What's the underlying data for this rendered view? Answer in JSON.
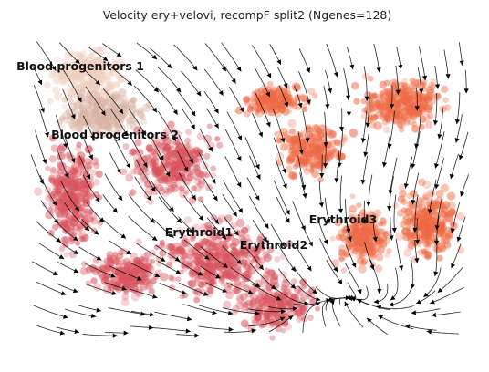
{
  "chart_data": {
    "type": "scatter",
    "subtype": "velocity-stream-embedding",
    "title": "Velocity ery+velovi, recompF split2 (Ngenes=128)",
    "xlabel": "",
    "ylabel": "",
    "axes_visible": false,
    "grid": false,
    "legend": "none",
    "color_scheme": {
      "progenitor_early": "#efcfbf",
      "progenitor_late": "#d9b3a3",
      "erythroid_mid": "#d9535d",
      "erythroid_late": "#ee6a45",
      "stream_color": "#000000"
    },
    "clusters": [
      {
        "name": "Blood progenitors 1",
        "label": "Blood progenitors 1"
      },
      {
        "name": "Blood progenitors 2",
        "label": "Blood progenitors 2"
      },
      {
        "name": "Erythroid1",
        "label": "Erythroid1"
      },
      {
        "name": "Erythroid2",
        "label": "Erythroid2"
      },
      {
        "name": "Erythroid3",
        "label": "Erythroid3"
      }
    ]
  }
}
